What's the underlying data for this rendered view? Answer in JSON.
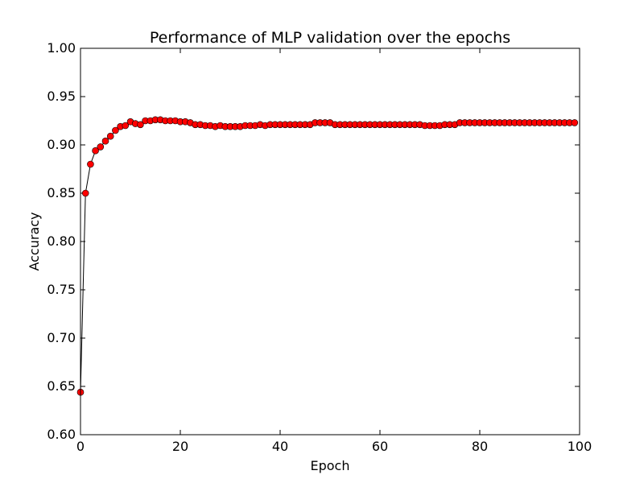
{
  "chart_data": {
    "type": "line",
    "title": "Performance of MLP validation over the epochs",
    "xlabel": "Epoch",
    "ylabel": "Accuracy",
    "xlim": [
      0,
      100
    ],
    "ylim": [
      0.6,
      1.0
    ],
    "x_ticks": [
      "0",
      "20",
      "40",
      "60",
      "80",
      "100"
    ],
    "y_ticks": [
      "0.60",
      "0.65",
      "0.70",
      "0.75",
      "0.80",
      "0.85",
      "0.90",
      "0.95",
      "1.00"
    ],
    "grid": false,
    "line_color": "#000000",
    "marker_color": "#ff0000",
    "marker_edge_color": "#000000",
    "series": [
      {
        "x": [
          0,
          1,
          2,
          3,
          4,
          5,
          6,
          7,
          8,
          9,
          10,
          11,
          12,
          13,
          14,
          15,
          16,
          17,
          18,
          19,
          20,
          21,
          22,
          23,
          24,
          25,
          26,
          27,
          28,
          29,
          30,
          31,
          32,
          33,
          34,
          35,
          36,
          37,
          38,
          39,
          40,
          41,
          42,
          43,
          44,
          45,
          46,
          47,
          48,
          49,
          50,
          51,
          52,
          53,
          54,
          55,
          56,
          57,
          58,
          59,
          60,
          61,
          62,
          63,
          64,
          65,
          66,
          67,
          68,
          69,
          70,
          71,
          72,
          73,
          74,
          75,
          76,
          77,
          78,
          79,
          80,
          81,
          82,
          83,
          84,
          85,
          86,
          87,
          88,
          89,
          90,
          91,
          92,
          93,
          94,
          95,
          96,
          97,
          98,
          99
        ],
        "values": [
          0.644,
          0.85,
          0.88,
          0.894,
          0.898,
          0.904,
          0.909,
          0.915,
          0.919,
          0.92,
          0.924,
          0.922,
          0.921,
          0.925,
          0.925,
          0.926,
          0.926,
          0.925,
          0.925,
          0.925,
          0.924,
          0.924,
          0.923,
          0.921,
          0.921,
          0.92,
          0.92,
          0.919,
          0.92,
          0.919,
          0.919,
          0.919,
          0.919,
          0.92,
          0.92,
          0.92,
          0.921,
          0.92,
          0.921,
          0.921,
          0.921,
          0.921,
          0.921,
          0.921,
          0.921,
          0.921,
          0.921,
          0.923,
          0.923,
          0.923,
          0.923,
          0.921,
          0.921,
          0.921,
          0.921,
          0.921,
          0.921,
          0.921,
          0.921,
          0.921,
          0.921,
          0.921,
          0.921,
          0.921,
          0.921,
          0.921,
          0.921,
          0.921,
          0.921,
          0.92,
          0.92,
          0.92,
          0.92,
          0.921,
          0.921,
          0.921,
          0.923,
          0.923,
          0.923,
          0.923,
          0.923,
          0.923,
          0.923,
          0.923,
          0.923,
          0.923,
          0.923,
          0.923,
          0.923,
          0.923,
          0.923,
          0.923,
          0.923,
          0.923,
          0.923,
          0.923,
          0.923,
          0.923,
          0.923,
          0.923
        ]
      }
    ]
  }
}
